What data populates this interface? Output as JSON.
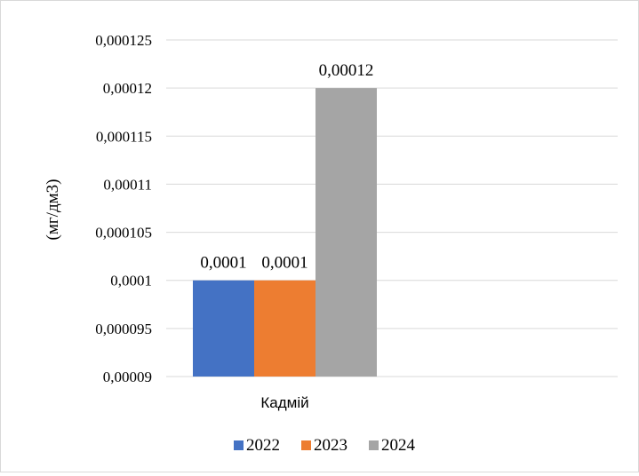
{
  "chart_data": {
    "type": "bar",
    "categories": [
      "Кадмій"
    ],
    "series": [
      {
        "name": "2022",
        "values": [
          0.0001
        ],
        "label": "0,0001",
        "color": "#4472C4"
      },
      {
        "name": "2023",
        "values": [
          0.0001
        ],
        "label": "0,0001",
        "color": "#ED7D31"
      },
      {
        "name": "2024",
        "values": [
          0.00012
        ],
        "label": "0,00012",
        "color": "#A5A5A5"
      }
    ],
    "ylabel": "(мг/дм3)",
    "ylim": [
      9e-05,
      0.000125
    ],
    "yticks": [
      {
        "value": 9e-05,
        "label": "0,00009"
      },
      {
        "value": 9.5e-05,
        "label": "0,000095"
      },
      {
        "value": 0.0001,
        "label": "0,0001"
      },
      {
        "value": 0.000105,
        "label": "0,000105"
      },
      {
        "value": 0.00011,
        "label": "0,00011"
      },
      {
        "value": 0.000115,
        "label": "0,000115"
      },
      {
        "value": 0.00012,
        "label": "0,00012"
      },
      {
        "value": 0.000125,
        "label": "0,000125"
      }
    ],
    "grid": true,
    "gridline_color": "#d9d9d9",
    "legend_position": "bottom"
  }
}
